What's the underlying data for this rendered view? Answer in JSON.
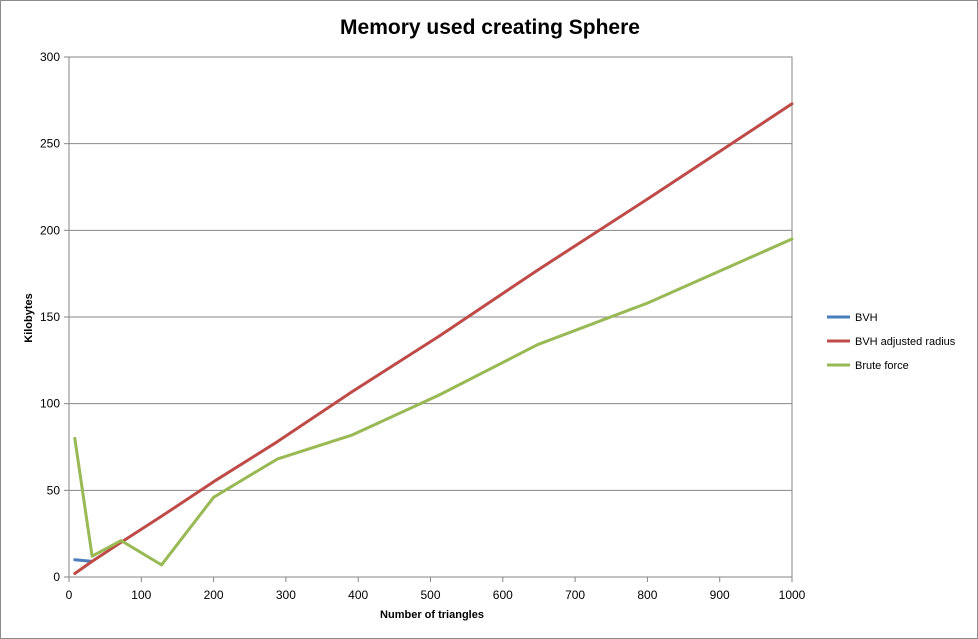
{
  "chart_data": {
    "type": "line",
    "title": "Memory used creating Sphere",
    "xlabel": "Number of triangles",
    "ylabel": "Kilobytes",
    "xlim": [
      0,
      1000
    ],
    "ylim": [
      0,
      300
    ],
    "xticks": [
      0,
      100,
      200,
      300,
      400,
      500,
      600,
      700,
      800,
      900,
      1000
    ],
    "yticks": [
      0,
      50,
      100,
      150,
      200,
      250,
      300
    ],
    "grid": "horizontal",
    "legend_position": "right",
    "series": [
      {
        "name": "BVH",
        "color": "#4a7ebb",
        "x": [
          8,
          32
        ],
        "y": [
          10,
          9
        ]
      },
      {
        "name": "BVH adjusted radius",
        "color": "#be4b48",
        "x": [
          8,
          32,
          72,
          128,
          200,
          288,
          392,
          512,
          648,
          800,
          1000
        ],
        "y": [
          2,
          9,
          20,
          35,
          55,
          78,
          107,
          139,
          177,
          218,
          273
        ]
      },
      {
        "name": "Brute force",
        "color": "#98b954",
        "x": [
          8,
          32,
          72,
          128,
          200,
          288,
          392,
          512,
          648,
          800,
          1000
        ],
        "y": [
          80,
          12,
          21,
          7,
          46,
          68,
          82,
          105,
          134,
          158,
          195
        ]
      }
    ]
  }
}
